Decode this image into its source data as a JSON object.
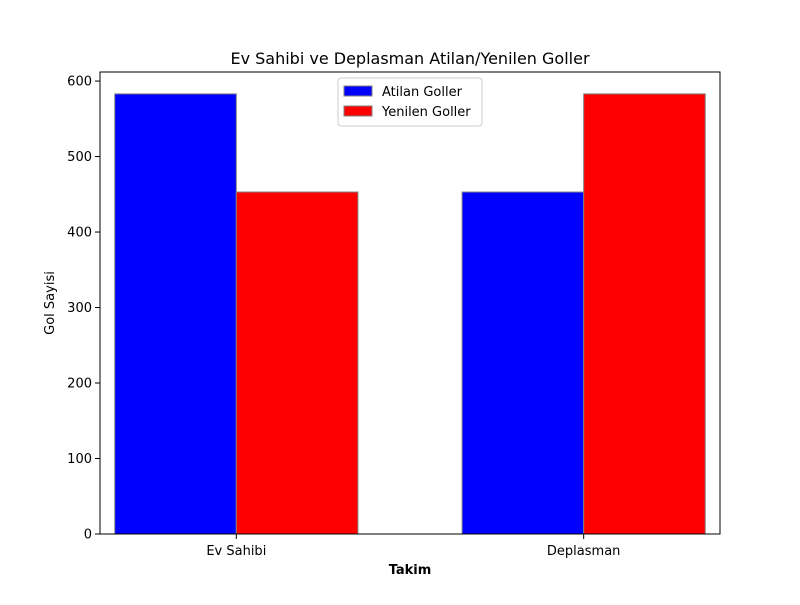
{
  "chart_data": {
    "type": "bar",
    "title": "Ev Sahibi ve Deplasman Atilan/Yenilen Goller",
    "xlabel": "Takim",
    "ylabel": "Gol Sayisi",
    "categories": [
      "Ev Sahibi",
      "Deplasman"
    ],
    "series": [
      {
        "name": "Atilan Goller",
        "values": [
          583,
          453
        ],
        "color": "#0000ff"
      },
      {
        "name": "Yenilen Goller",
        "values": [
          453,
          583
        ],
        "color": "#ff0000"
      }
    ],
    "ylim": [
      0,
      612
    ],
    "yticks": [
      0,
      100,
      200,
      300,
      400,
      500,
      600
    ],
    "grid": false,
    "legend_position": "top-center"
  }
}
